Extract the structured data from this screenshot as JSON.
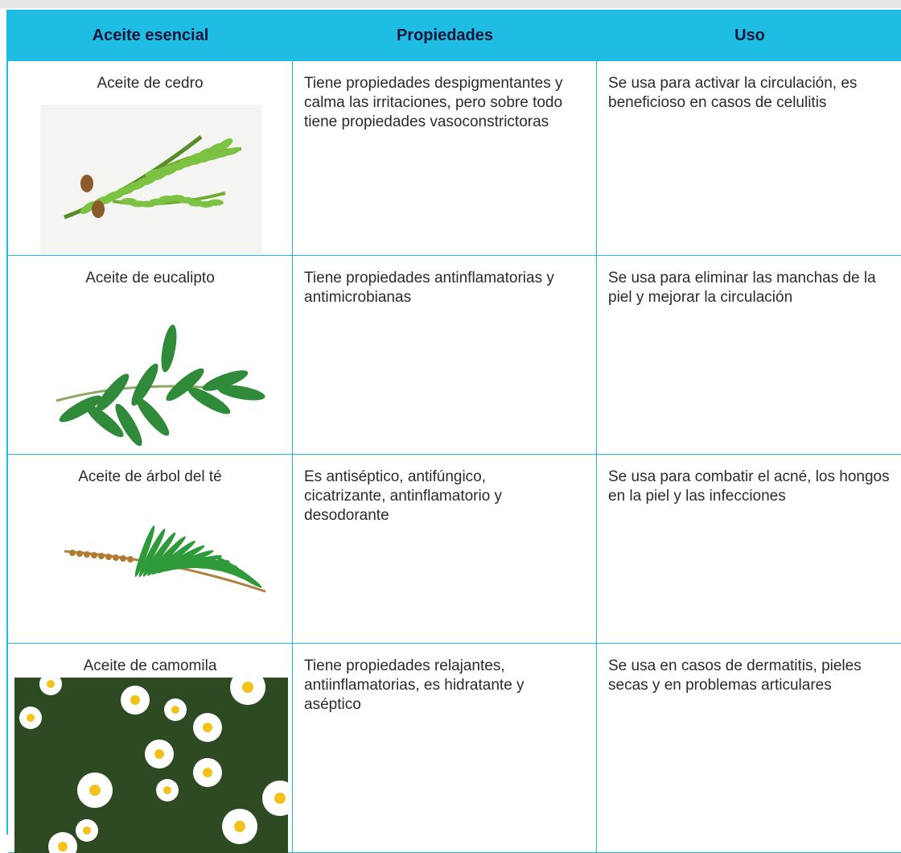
{
  "table": {
    "header": [
      "Aceite esencial",
      "Propiedades",
      "Uso"
    ],
    "rows": [
      [
        "Aceite de cedro",
        "Tiene propiedades despigmentantes y calma las irritaciones, pero sobre todo tiene propiedades vasoconstrictoras",
        "Se usa para activar la circulación, es beneficioso en casos de celulitis"
      ],
      [
        "Aceite de eucalipto",
        "Tiene propiedades antinflamatorias y antimicrobianas",
        "Se usa para eliminar las manchas de la piel y mejorar la circulación"
      ],
      [
        "Aceite de árbol del té",
        "Es antiséptico, antifúngico, cicatrizante, antinflamatorio y desodorante",
        "Se usa para combatir el acné, los hongos en la piel y las infecciones"
      ],
      [
        "Aceite de camomila",
        "Tiene propiedades relajantes, antiinflamatorias, es hidratante y aséptico",
        "Se usa en casos de dermatitis, pieles secas y en problemas articulares"
      ]
    ]
  }
}
